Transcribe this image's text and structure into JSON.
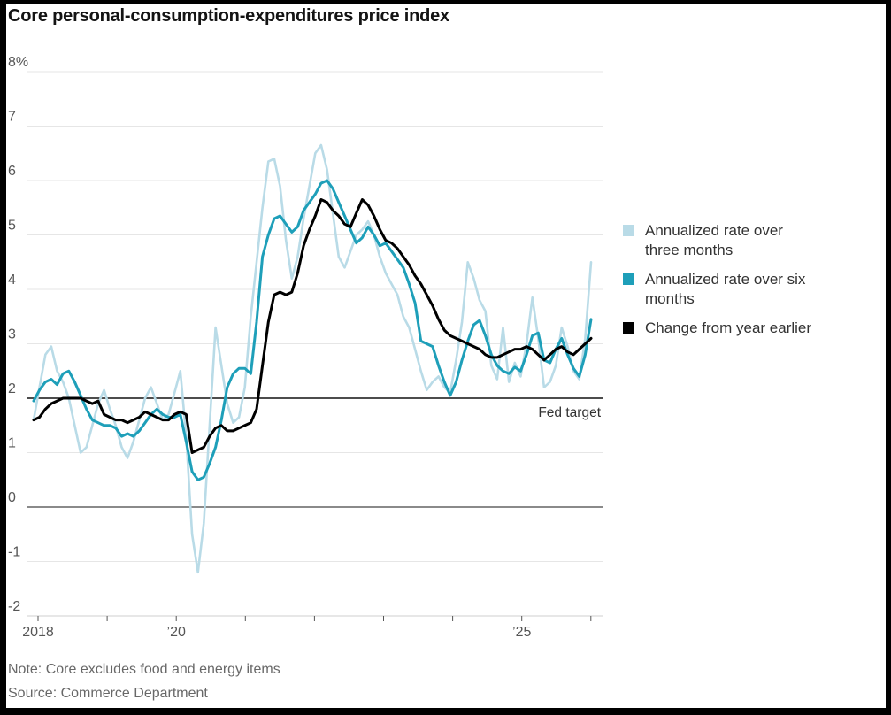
{
  "header": {
    "title": "Core personal-consumption-expenditures price index"
  },
  "legend": {
    "items": [
      {
        "line1": "Annualized rate over",
        "line2": "three months",
        "color": "#b9dbe7"
      },
      {
        "line1": "Annualized rate over six",
        "line2": "months",
        "color": "#1e9fb9"
      },
      {
        "line1": "Change from year earlier",
        "line2": "",
        "color": "#000000"
      }
    ]
  },
  "footer": {
    "note": "Note: Core excludes food and energy items",
    "source": "Source: Commerce Department"
  },
  "colors": {
    "three_month_line": "#b9dbe7",
    "six_month_line": "#1e9fb9",
    "year_earlier_line": "#000000",
    "gridline": "#e6e6e6",
    "zero_line": "#8a8a8a",
    "baseline": "#cfcfcf",
    "axis_text": "#555555",
    "fed_target_line": "#111111",
    "fed_target_text": "#333333",
    "title_text": "#141414",
    "footer_text": "#686868",
    "frame": "#000000",
    "background": "#ffffff"
  },
  "chart_data": {
    "type": "line",
    "title": "Core personal-consumption-expenditures price index",
    "frequency": "monthly",
    "first_month": "2018-01",
    "last_month": "2025-12",
    "y_axis": {
      "unit": "%",
      "min": -2,
      "max": 8,
      "tick_values": [
        8,
        7,
        6,
        5,
        4,
        3,
        2,
        1,
        0,
        -1,
        -2
      ],
      "tick_labels": [
        "8%",
        "7",
        "6",
        "5",
        "4",
        "3",
        "2",
        "1",
        "0",
        "-1",
        "-2"
      ]
    },
    "x_axis": {
      "tick_years": [
        2018,
        2019,
        2020,
        2021,
        2022,
        2023,
        2024,
        2025,
        2026
      ],
      "labeled_ticks": {
        "2018": "2018",
        "2020": "’20",
        "2025": "’25"
      }
    },
    "reference_lines": [
      {
        "label": "Fed target",
        "value": 2
      },
      {
        "label": "",
        "value": 0
      }
    ],
    "legend_position": "right",
    "grid": "horizontal-only",
    "series": [
      {
        "name": "Annualized rate over three months",
        "color": "#b9dbe7",
        "values": [
          1.6,
          2.2,
          2.8,
          2.95,
          2.5,
          2.3,
          2.0,
          1.5,
          1.0,
          1.1,
          1.5,
          1.9,
          2.15,
          1.8,
          1.5,
          1.1,
          0.9,
          1.2,
          1.6,
          2.0,
          2.2,
          1.9,
          1.6,
          1.7,
          2.1,
          2.5,
          1.3,
          -0.5,
          -1.2,
          -0.3,
          1.5,
          3.3,
          2.6,
          1.9,
          1.55,
          1.65,
          2.2,
          3.5,
          4.5,
          5.5,
          6.35,
          6.4,
          5.9,
          4.9,
          4.2,
          4.6,
          5.3,
          5.9,
          6.5,
          6.65,
          6.2,
          5.4,
          4.6,
          4.4,
          4.7,
          5.0,
          5.1,
          5.25,
          5.0,
          4.6,
          4.3,
          4.1,
          3.9,
          3.5,
          3.3,
          2.9,
          2.5,
          2.15,
          2.3,
          2.4,
          2.2,
          2.1,
          2.7,
          3.4,
          4.5,
          4.2,
          3.8,
          3.6,
          2.6,
          2.35,
          3.3,
          2.3,
          2.65,
          2.4,
          3.0,
          3.85,
          3.1,
          2.2,
          2.3,
          2.6,
          3.3,
          2.95,
          2.5,
          2.35,
          3.1,
          4.5
        ]
      },
      {
        "name": "Annualized rate over six months",
        "color": "#1e9fb9",
        "values": [
          1.95,
          2.15,
          2.3,
          2.35,
          2.25,
          2.45,
          2.5,
          2.3,
          2.05,
          1.8,
          1.6,
          1.55,
          1.5,
          1.5,
          1.45,
          1.3,
          1.35,
          1.3,
          1.4,
          1.55,
          1.7,
          1.8,
          1.7,
          1.65,
          1.65,
          1.7,
          1.2,
          0.65,
          0.5,
          0.55,
          0.8,
          1.1,
          1.6,
          2.2,
          2.45,
          2.55,
          2.55,
          2.45,
          3.4,
          4.6,
          5.0,
          5.3,
          5.35,
          5.2,
          5.05,
          5.15,
          5.45,
          5.6,
          5.75,
          5.95,
          6.0,
          5.85,
          5.6,
          5.35,
          5.1,
          4.85,
          4.95,
          5.15,
          5.0,
          4.8,
          4.85,
          4.7,
          4.55,
          4.4,
          4.1,
          3.75,
          3.05,
          3.0,
          2.95,
          2.6,
          2.3,
          2.05,
          2.3,
          2.7,
          3.05,
          3.35,
          3.43,
          3.15,
          2.8,
          2.6,
          2.5,
          2.45,
          2.57,
          2.5,
          2.8,
          3.15,
          3.2,
          2.7,
          2.65,
          2.9,
          3.1,
          2.8,
          2.55,
          2.4,
          2.8,
          3.45
        ]
      },
      {
        "name": "Change from year earlier",
        "color": "#000000",
        "values": [
          1.6,
          1.65,
          1.8,
          1.9,
          1.95,
          2.0,
          2.0,
          2.0,
          2.0,
          1.95,
          1.9,
          1.95,
          1.7,
          1.65,
          1.6,
          1.6,
          1.55,
          1.6,
          1.65,
          1.75,
          1.7,
          1.65,
          1.6,
          1.6,
          1.7,
          1.75,
          1.7,
          1.0,
          1.05,
          1.1,
          1.3,
          1.45,
          1.5,
          1.4,
          1.4,
          1.45,
          1.5,
          1.55,
          1.8,
          2.6,
          3.4,
          3.9,
          3.95,
          3.9,
          3.95,
          4.3,
          4.8,
          5.1,
          5.35,
          5.65,
          5.6,
          5.45,
          5.35,
          5.2,
          5.15,
          5.4,
          5.65,
          5.55,
          5.35,
          5.1,
          4.9,
          4.85,
          4.75,
          4.6,
          4.45,
          4.25,
          4.1,
          3.9,
          3.7,
          3.45,
          3.25,
          3.15,
          3.1,
          3.05,
          3.0,
          2.95,
          2.9,
          2.8,
          2.75,
          2.75,
          2.8,
          2.85,
          2.9,
          2.9,
          2.95,
          2.9,
          2.8,
          2.7,
          2.8,
          2.9,
          2.95,
          2.85,
          2.8,
          2.9,
          3.0,
          3.1
        ]
      }
    ]
  }
}
